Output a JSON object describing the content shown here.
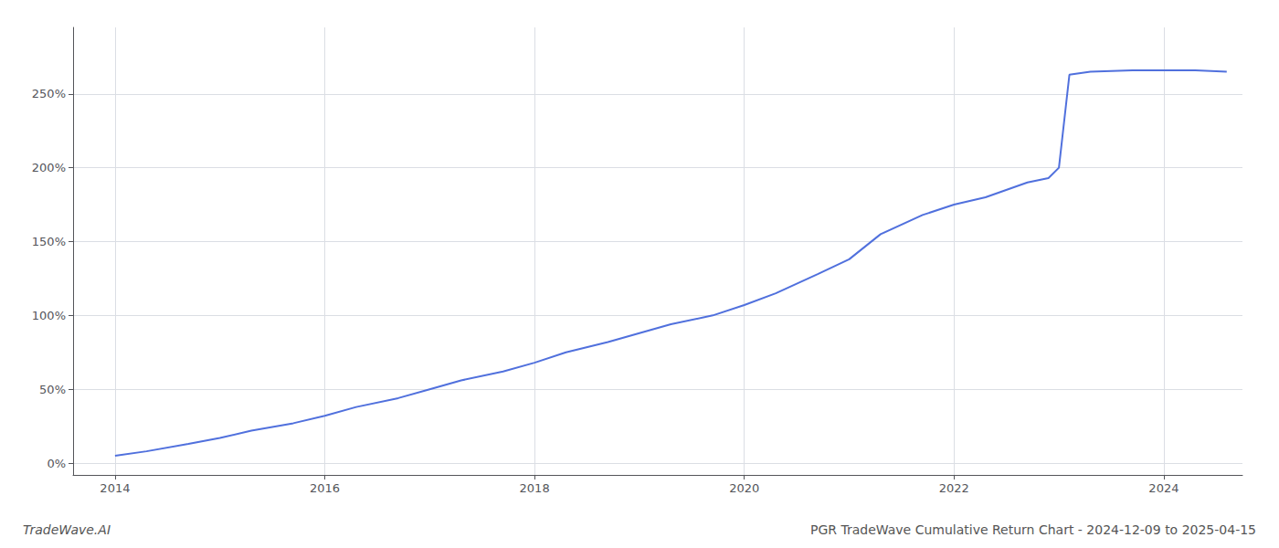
{
  "chart_data": {
    "type": "line",
    "title": "PGR TradeWave Cumulative Return Chart - 2024-12-09 to 2025-04-15",
    "subtitle": "TradeWave.AI",
    "x": [
      2014.0,
      2014.3,
      2014.7,
      2015.0,
      2015.3,
      2015.7,
      2016.0,
      2016.3,
      2016.7,
      2017.0,
      2017.3,
      2017.7,
      2018.0,
      2018.3,
      2018.7,
      2019.0,
      2019.3,
      2019.7,
      2020.0,
      2020.3,
      2020.7,
      2021.0,
      2021.3,
      2021.7,
      2022.0,
      2022.3,
      2022.7,
      2022.9,
      2023.0,
      2023.1,
      2023.3,
      2023.7,
      2024.0,
      2024.3,
      2024.6
    ],
    "values": [
      5,
      8,
      13,
      17,
      22,
      27,
      32,
      38,
      44,
      50,
      56,
      62,
      68,
      75,
      82,
      88,
      94,
      100,
      107,
      115,
      128,
      138,
      155,
      168,
      175,
      180,
      190,
      193,
      200,
      263,
      265,
      266,
      266,
      266,
      265
    ],
    "xlim": [
      2013.6,
      2024.75
    ],
    "xticks": [
      2014,
      2016,
      2018,
      2020,
      2022,
      2024
    ],
    "ylim": [
      -8,
      295
    ],
    "yticks": [
      {
        "value": 0,
        "label": "0%"
      },
      {
        "value": 50,
        "label": "50%"
      },
      {
        "value": 100,
        "label": "100%"
      },
      {
        "value": 150,
        "label": "150%"
      },
      {
        "value": 200,
        "label": "200%"
      },
      {
        "value": 250,
        "label": "250%"
      }
    ],
    "grid": true
  }
}
